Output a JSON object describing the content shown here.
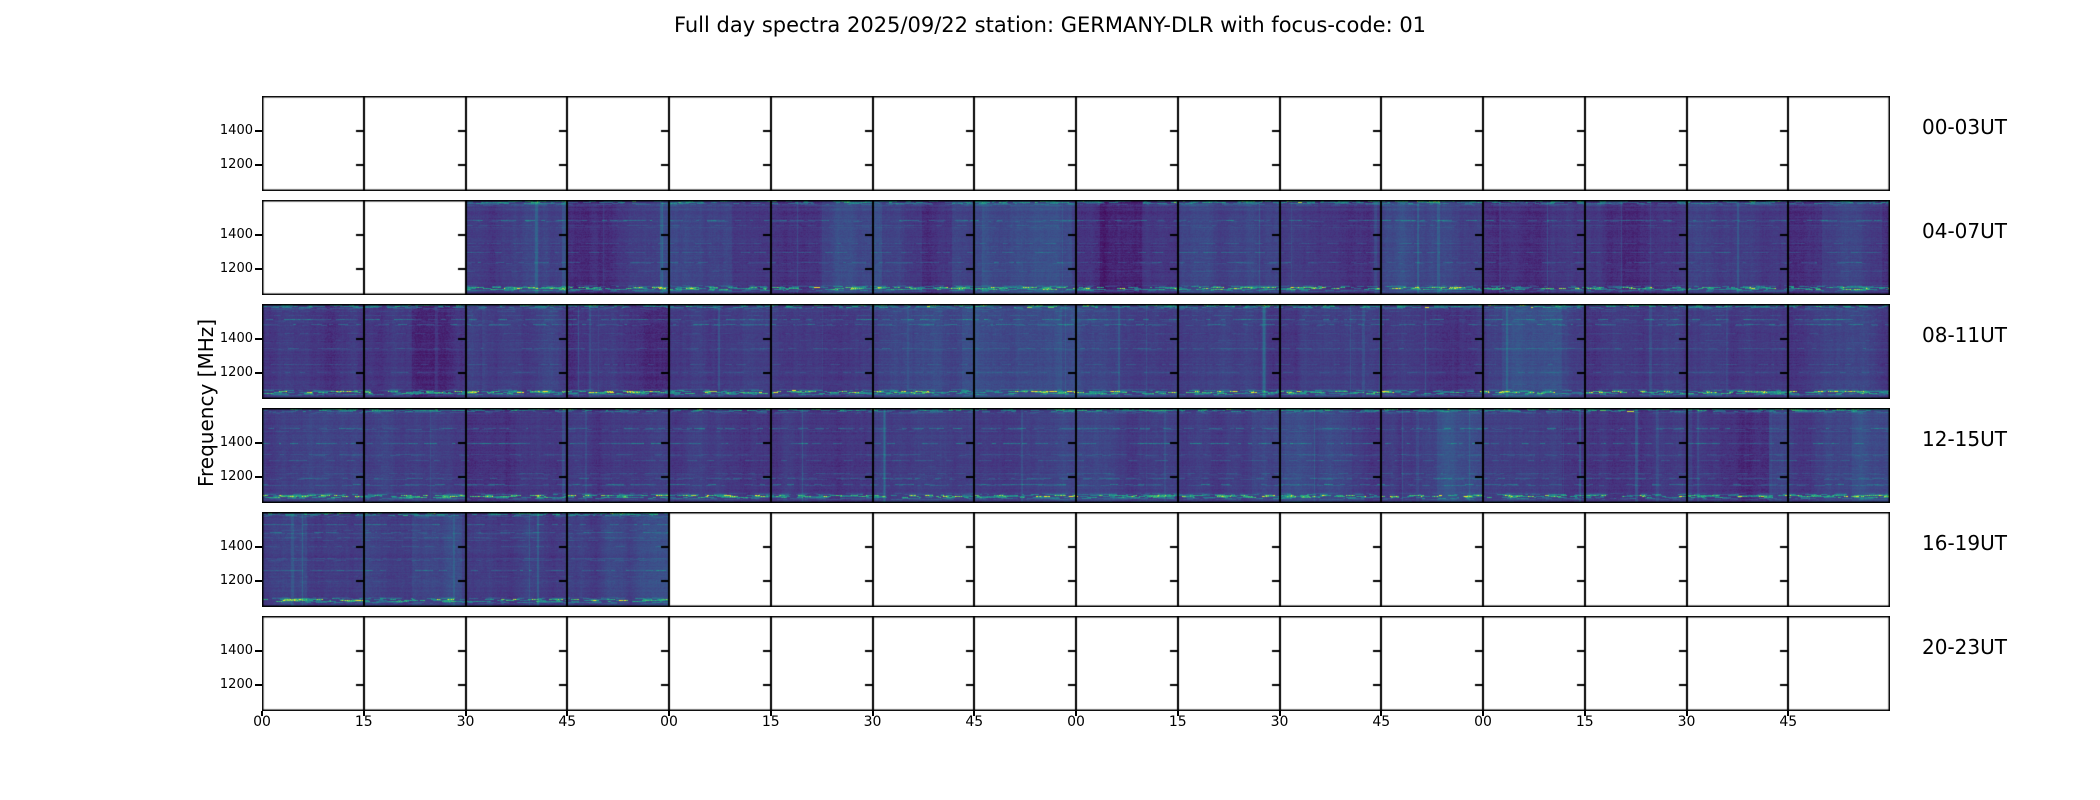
{
  "title": "Full day spectra 2025/09/22 station: GERMANY-DLR with focus-code: 01",
  "axes": {
    "y_label": "Frequency [MHz]",
    "y_tick_labels": [
      "1400",
      "1200"
    ],
    "x_tick_labels": [
      "00",
      "15",
      "30",
      "45",
      "00",
      "15",
      "30",
      "45",
      "00",
      "15",
      "30",
      "45",
      "00",
      "15",
      "30",
      "45"
    ]
  },
  "rows": [
    {
      "label": "00-03UT",
      "data_coverage": "none",
      "filled": [],
      "seed": 11
    },
    {
      "label": "04-07UT",
      "data_coverage": "04:30-08:00",
      "filled": [
        [
          2,
          16
        ]
      ],
      "seed": 42,
      "texture": {
        "light_bands": [
          [
            400,
            470
          ],
          [
            560,
            660
          ],
          [
            720,
            810
          ],
          [
            1560,
            1620
          ]
        ],
        "dark_bands": [
          [
            620,
            690
          ],
          [
            838,
            880
          ]
        ]
      }
    },
    {
      "label": "08-11UT",
      "data_coverage": "08:00-12:00",
      "filled": [
        [
          0,
          16
        ]
      ],
      "seed": 77,
      "texture": {
        "light_bands": [
          [
            700,
            800
          ],
          [
            1240,
            1300
          ]
        ],
        "dark_bands": [
          [
            150,
            220
          ]
        ]
      }
    },
    {
      "label": "12-15UT",
      "data_coverage": "12:00-16:00",
      "filled": [
        [
          0,
          16
        ]
      ],
      "seed": 123,
      "texture": {
        "light_bands": [
          [
            990,
            1090
          ],
          [
            1175,
            1300
          ],
          [
            1590,
            1628
          ]
        ],
        "dark_bands": [
          [
            1430,
            1510
          ]
        ]
      }
    },
    {
      "label": "16-19UT",
      "data_coverage": "16:00-17:00",
      "filled": [
        [
          0,
          4
        ]
      ],
      "seed": 7,
      "texture": {
        "dark_bands": [
          [
            45,
            100
          ]
        ],
        "light_bands": [
          [
            150,
            200
          ]
        ]
      }
    },
    {
      "label": "20-23UT",
      "data_coverage": "none",
      "filled": [],
      "seed": 99
    }
  ],
  "palette": {
    "background": "#ffffff",
    "frame": "#000000",
    "colormap": "viridis",
    "colormap_stops": [
      "#440154",
      "#46327e",
      "#3b528b",
      "#2c718e",
      "#21918c",
      "#27ad81",
      "#5cc863",
      "#fde725"
    ]
  },
  "chart_data": {
    "type": "heatmap",
    "title": "Full day spectra 2025/09/22 station: GERMANY-DLR with focus-code: 01",
    "xlabel": "",
    "ylabel": "Frequency [MHz]",
    "y_ticks": [
      1400,
      1200
    ],
    "x_tick_labels": [
      "00",
      "15",
      "30",
      "45",
      "00",
      "15",
      "30",
      "45",
      "00",
      "15",
      "30",
      "45",
      "00",
      "15",
      "30",
      "45"
    ],
    "row_labels": [
      "00-03UT",
      "04-07UT",
      "08-11UT",
      "12-15UT",
      "16-19UT",
      "20-23UT"
    ],
    "panels_per_row": 16,
    "panel_duration_minutes": 15,
    "hours_per_row": 4,
    "colormap": "viridis",
    "grid": false,
    "data_coverage_by_row": [
      {
        "row": "00-03UT",
        "coverage": "none"
      },
      {
        "row": "04-07UT",
        "coverage": "04:30-08:00"
      },
      {
        "row": "08-11UT",
        "coverage": "08:00-12:00"
      },
      {
        "row": "12-15UT",
        "coverage": "12:00-16:00"
      },
      {
        "row": "16-19UT",
        "coverage": "16:00-17:00"
      },
      {
        "row": "20-23UT",
        "coverage": "none"
      }
    ],
    "content_description": "Dark purple spectrogram panels with bright teal/green speckled interference bands near the top edge and near the bottom (~90% height) of each panel, faint horizontal channel lines and lighter vertical time bands"
  }
}
